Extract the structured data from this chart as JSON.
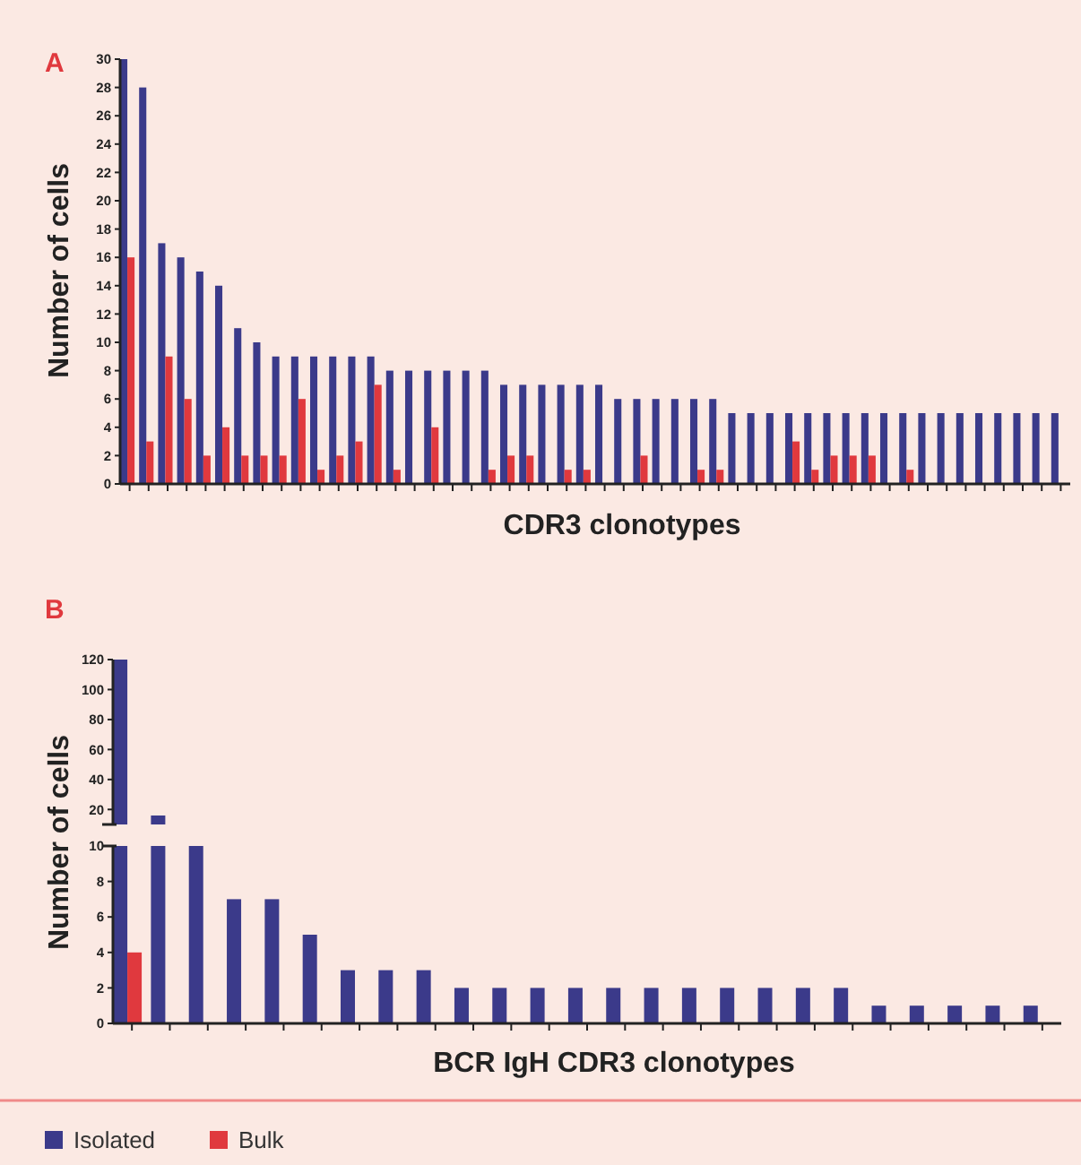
{
  "chart_data": [
    {
      "type": "bar",
      "title": "A",
      "xlabel": "CDR3 clonotypes",
      "ylabel": "Number of cells",
      "categories": [
        null,
        null,
        null,
        null,
        null,
        null,
        null,
        null,
        null,
        null,
        null,
        null,
        null,
        null,
        null,
        null,
        null,
        null,
        null,
        null,
        null,
        null,
        null,
        null,
        null,
        null,
        null,
        null,
        null,
        null,
        null,
        null,
        null,
        null,
        null,
        null,
        null,
        null,
        null,
        null,
        null,
        null,
        null,
        null,
        null,
        null,
        null,
        null,
        null,
        null
      ],
      "series": [
        {
          "name": "Isolated",
          "color": "#3b3a8a",
          "values": [
            30,
            28,
            17,
            16,
            15,
            14,
            11,
            10,
            9,
            9,
            9,
            9,
            9,
            9,
            8,
            8,
            8,
            8,
            8,
            8,
            7,
            7,
            7,
            7,
            7,
            7,
            6,
            6,
            6,
            6,
            6,
            6,
            5,
            5,
            5,
            5,
            5,
            5,
            5,
            5,
            5,
            5,
            5,
            5,
            5,
            5,
            5,
            5,
            5,
            5
          ]
        },
        {
          "name": "Bulk",
          "color": "#e0393e",
          "values": [
            16,
            3,
            9,
            6,
            2,
            4,
            2,
            2,
            2,
            6,
            1,
            2,
            3,
            7,
            1,
            null,
            4,
            null,
            null,
            1,
            2,
            2,
            null,
            1,
            1,
            null,
            null,
            2,
            null,
            null,
            1,
            1,
            null,
            null,
            null,
            3,
            1,
            2,
            2,
            2,
            null,
            1,
            null,
            null,
            null,
            null,
            null,
            null,
            null,
            null
          ]
        }
      ],
      "ylim": [
        0,
        30
      ],
      "yticks": [
        0,
        2,
        4,
        6,
        8,
        10,
        12,
        14,
        16,
        18,
        20,
        22,
        24,
        26,
        28,
        30
      ],
      "legend": "bottom"
    },
    {
      "type": "bar",
      "title": "B",
      "legend": "bottom",
      "categories": [
        null,
        null
      ],
      "series": [
        {
          "name": "Isolated",
          "color": "#3b3a8a",
          "values": [
            120,
            16
          ]
        }
      ],
      "ylim": [
        10,
        120
      ],
      "yticks": [
        20,
        40,
        60,
        80,
        100,
        120
      ],
      "tick_labels": "y"
    },
    {
      "type": "bar",
      "xlabel": "BCR IgH CDR3 clonotypes",
      "ylabel": "Number of cells",
      "categories": [
        null,
        null,
        null,
        null,
        null,
        null,
        null,
        null,
        null,
        null,
        null,
        null,
        null,
        null,
        null,
        null,
        null,
        null,
        null,
        null,
        null,
        null,
        null,
        null,
        null
      ],
      "series": [
        {
          "name": "Isolated",
          "color": "#3b3a8a",
          "values": [
            null,
            null,
            10,
            7,
            7,
            5,
            3,
            3,
            3,
            2,
            2,
            2,
            2,
            2,
            2,
            2,
            2,
            2,
            2,
            2,
            1,
            1,
            1,
            1,
            1
          ]
        },
        {
          "name": "Bulk",
          "color": "#e0393e",
          "values": [
            4,
            null,
            null,
            null,
            null,
            null,
            null,
            null,
            null,
            null,
            null,
            null,
            null,
            null,
            null,
            null,
            null,
            null,
            null,
            null,
            null,
            null,
            null,
            null,
            null
          ]
        }
      ],
      "ylim": [
        0,
        10
      ],
      "yticks": [
        0,
        2,
        4,
        6,
        8,
        10
      ],
      "legend": "bottom"
    }
  ]
}
